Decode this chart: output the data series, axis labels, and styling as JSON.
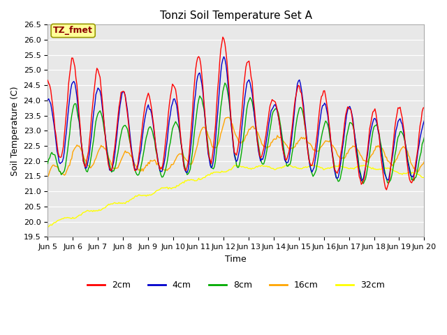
{
  "title": "Tonzi Soil Temperature Set A",
  "xlabel": "Time",
  "ylabel": "Soil Temperature (C)",
  "ylim": [
    19.5,
    26.5
  ],
  "annotation": "TZ_fmet",
  "annotation_color": "#8B0000",
  "annotation_bg": "#FFFF99",
  "annotation_edge": "#999900",
  "bg_color": "#E8E8E8",
  "series_colors": {
    "2cm": "#FF0000",
    "4cm": "#0000CC",
    "8cm": "#00AA00",
    "16cm": "#FFA500",
    "32cm": "#FFFF00"
  },
  "series_linewidth": 1.0,
  "tick_labels": [
    "Jun 5",
    "Jun 6",
    "Jun 7",
    "Jun 8",
    "Jun 9",
    "Jun 10",
    "Jun 11",
    "Jun 12",
    "Jun 13",
    "Jun 14",
    "Jun 15",
    "Jun 16",
    "Jun 17",
    "Jun 18",
    "Jun 19",
    "Jun 20"
  ],
  "tick_positions": [
    0,
    24,
    48,
    72,
    96,
    120,
    144,
    168,
    192,
    216,
    240,
    264,
    288,
    312,
    336,
    360
  ],
  "yticks": [
    19.5,
    20.0,
    20.5,
    21.0,
    21.5,
    22.0,
    22.5,
    23.0,
    23.5,
    24.0,
    24.5,
    25.0,
    25.5,
    26.0,
    26.5
  ]
}
